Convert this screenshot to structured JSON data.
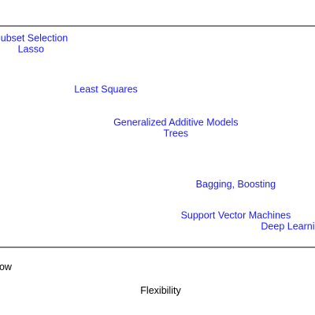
{
  "chart_data": {
    "type": "scatter",
    "xlabel": "Flexibility",
    "x_tick_low": "Low",
    "plot_frame": "box",
    "label_color": "#1a1aff",
    "frame_color": "#000000",
    "xlim": [
      -0.25,
      1.2
    ],
    "ylim": [
      0,
      1
    ],
    "points": [
      {
        "label": "Subset Selection",
        "x": 0.0,
        "y": 0.93
      },
      {
        "label": "Lasso",
        "x": 0.0,
        "y": 0.88
      },
      {
        "label": "Least Squares",
        "x": 0.3,
        "y": 0.7
      },
      {
        "label": "Generalized Additive Models",
        "x": 0.58,
        "y": 0.55
      },
      {
        "label": "Trees",
        "x": 0.58,
        "y": 0.5
      },
      {
        "label": "Bagging, Boosting",
        "x": 0.82,
        "y": 0.27
      },
      {
        "label": "Support Vector Machines",
        "x": 0.82,
        "y": 0.13
      },
      {
        "label": "Deep Learning",
        "x": 1.05,
        "y": 0.08
      }
    ]
  }
}
